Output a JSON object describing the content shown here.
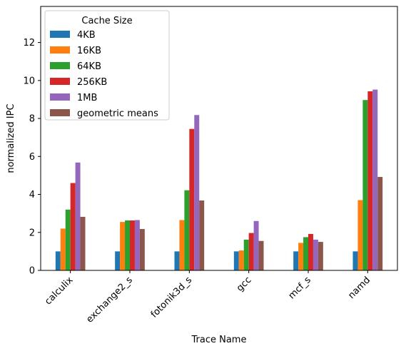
{
  "chart_data": {
    "type": "bar",
    "xlabel": "Trace Name",
    "ylabel": "normalized IPC",
    "ylim": [
      0,
      13.9
    ],
    "yticks": [
      0,
      2,
      4,
      6,
      8,
      10,
      12
    ],
    "categories": [
      "calculix",
      "exchange2_s",
      "fotonik3d_s",
      "gcc",
      "mcf_s",
      "namd"
    ],
    "legend": {
      "title": "Cache Size",
      "placement": "top-left"
    },
    "grid": false,
    "series": [
      {
        "name": "4KB",
        "color": "#1f77b4",
        "values": [
          1.0,
          1.0,
          1.0,
          1.0,
          1.0,
          1.0
        ]
      },
      {
        "name": "16KB",
        "color": "#ff7f0e",
        "values": [
          2.2,
          2.55,
          2.65,
          1.05,
          1.45,
          3.7
        ]
      },
      {
        "name": "64KB",
        "color": "#2ca02c",
        "values": [
          3.2,
          2.63,
          4.22,
          1.62,
          1.75,
          8.97
        ]
      },
      {
        "name": "256KB",
        "color": "#d62728",
        "values": [
          4.6,
          2.63,
          7.45,
          1.97,
          1.92,
          9.43
        ]
      },
      {
        "name": "1MB",
        "color": "#9467bd",
        "values": [
          5.68,
          2.65,
          8.18,
          2.6,
          1.62,
          9.52
        ]
      },
      {
        "name": "geometric means",
        "color": "#8c564b",
        "values": [
          2.82,
          2.18,
          3.68,
          1.55,
          1.5,
          4.92
        ]
      }
    ]
  }
}
